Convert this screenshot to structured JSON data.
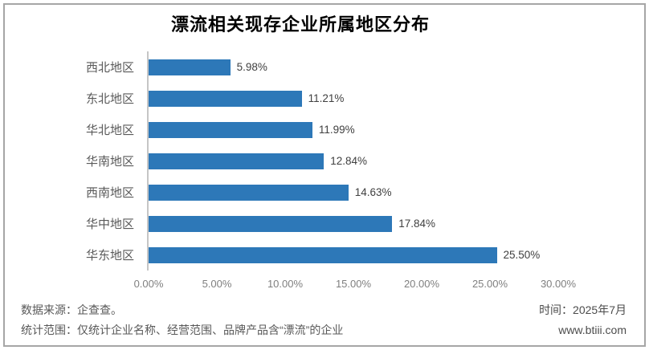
{
  "chart_data": {
    "type": "bar",
    "orientation": "horizontal",
    "title": "漂流相关现存企业所属地区分布",
    "categories": [
      "西北地区",
      "东北地区",
      "华北地区",
      "华南地区",
      "西南地区",
      "华中地区",
      "华东地区"
    ],
    "values": [
      5.98,
      11.21,
      11.99,
      12.84,
      14.63,
      17.84,
      25.5
    ],
    "value_labels": [
      "5.98%",
      "11.21%",
      "11.99%",
      "12.84%",
      "14.63%",
      "17.84%",
      "25.50%"
    ],
    "x_ticks": [
      "0.00%",
      "5.00%",
      "10.00%",
      "15.00%",
      "20.00%",
      "25.00%",
      "30.00%"
    ],
    "xlim": [
      0,
      30
    ],
    "bar_color": "#2d78b8",
    "axis_line_color": "#c6c6c6",
    "grid": false,
    "legend": false
  },
  "footer": {
    "source_line": "数据来源：企查查。",
    "scope_line": "统计范围：仅统计企业名称、经营范围、品牌产品含“漂流”的企业",
    "time_line": "时间：2025年7月",
    "website": "www.btiii.com"
  }
}
